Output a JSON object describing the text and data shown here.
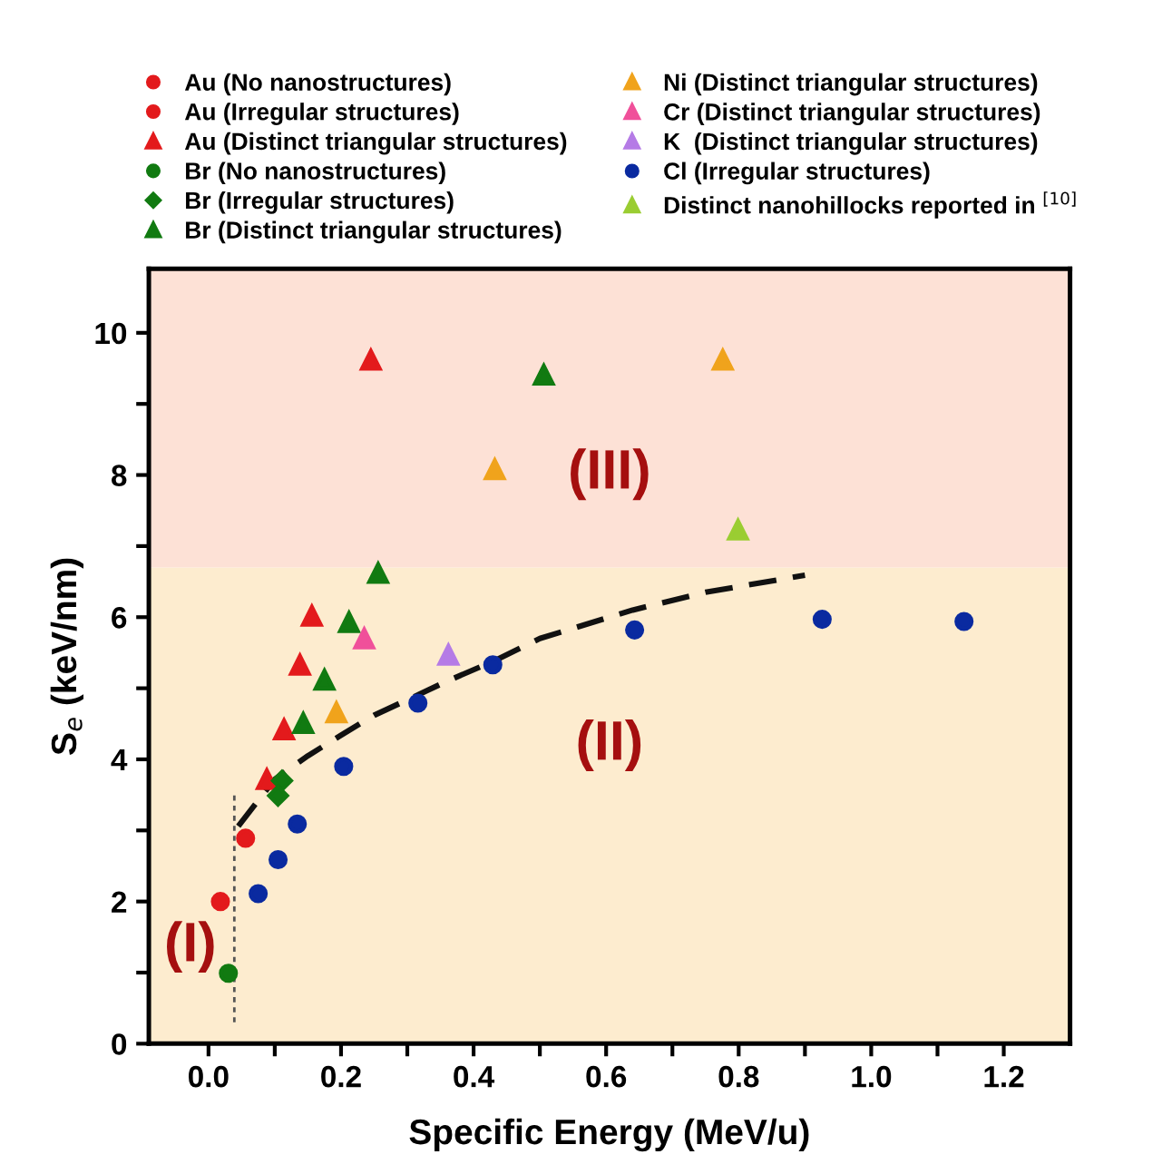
{
  "chart_data": {
    "type": "scatter",
    "xlabel": "Specific Energy (MeV/u)",
    "ylabel": "S$_{e}$ (keV/nm)",
    "xlim": [
      -0.09,
      1.3
    ],
    "ylim": [
      0,
      10.9
    ],
    "xticks": [
      {
        "value": 0,
        "label": "0.0"
      },
      {
        "value": 0.1,
        "label": null
      },
      {
        "value": 0.2,
        "label": "0.2"
      },
      {
        "value": 0.3,
        "label": null
      },
      {
        "value": 0.4,
        "label": "0.4"
      },
      {
        "value": 0.5,
        "label": null
      },
      {
        "value": 0.6,
        "label": "0.6"
      },
      {
        "value": 0.7,
        "label": null
      },
      {
        "value": 0.8,
        "label": "0.8"
      },
      {
        "value": 0.9,
        "label": null
      },
      {
        "value": 1.0,
        "label": "1.0"
      },
      {
        "value": 1.1,
        "label": null
      },
      {
        "value": 1.2,
        "label": "1.2"
      }
    ],
    "yticks": [
      0,
      {
        "value": 1,
        "label": null
      },
      2,
      {
        "value": 3,
        "label": null
      },
      4,
      {
        "value": 5,
        "label": null
      },
      6,
      {
        "value": 7,
        "label": null
      },
      8,
      {
        "value": 9,
        "label": null
      },
      10
    ],
    "grid": false,
    "legend": "top",
    "bands": [
      {
        "axis": "y",
        "from": 0,
        "to": 6.7,
        "color": "#fdeccf"
      },
      {
        "axis": "y",
        "from": 6.7,
        "to": 10.9,
        "color": "#fde1d6"
      }
    ],
    "annotations": [
      "(I)",
      "(II)",
      "(III)"
    ],
    "series": [
      {
        "name": "Au (No nanostructures)",
        "color": "#e31a1c",
        "marker": "circle",
        "x": [
          0.018
        ],
        "values": [
          2.0
        ]
      },
      {
        "name": "Au (Irregular structures)",
        "color": "#e31a1c",
        "marker": "circle",
        "x": [
          0.056
        ],
        "values": [
          2.89
        ]
      },
      {
        "name": "Au (Distinct triangular structures)",
        "color": "#e31a1c",
        "marker": "triangle",
        "x": [
          0.245,
          0.156,
          0.138,
          0.114,
          0.088
        ],
        "values": [
          9.62,
          6.02,
          5.33,
          4.42,
          3.72
        ]
      },
      {
        "name": "Br (No nanostructures)",
        "color": "#117a11",
        "marker": "circle",
        "x": [
          0.03
        ],
        "values": [
          0.99
        ]
      },
      {
        "name": "Br (Irregular structures)",
        "color": "#117a11",
        "marker": "diamond",
        "x": [
          0.111,
          0.105
        ],
        "values": [
          3.7,
          3.49
        ]
      },
      {
        "name": "Br (Distinct triangular structures)",
        "color": "#117a11",
        "marker": "triangle",
        "x": [
          0.506,
          0.256,
          0.212,
          0.175,
          0.143
        ],
        "values": [
          9.41,
          6.62,
          5.93,
          5.12,
          4.51
        ]
      },
      {
        "name": "Ni (Distinct triangular structures)",
        "color": "#f0a31c",
        "marker": "triangle",
        "x": [
          0.432,
          0.776,
          0.193
        ],
        "values": [
          8.08,
          9.62,
          4.66
        ]
      },
      {
        "name": "Cr (Distinct triangular structures)",
        "color": "#f0509a",
        "marker": "triangle",
        "x": [
          0.235
        ],
        "values": [
          5.7
        ]
      },
      {
        "name": "K  (Distinct triangular structures)",
        "color": "#b57be6",
        "marker": "triangle",
        "x": [
          0.362
        ],
        "values": [
          5.47
        ]
      },
      {
        "name": "Cl (Irregular structures)",
        "color": "#0a2aa0",
        "marker": "circle",
        "x": [
          0.075,
          0.105,
          0.134,
          0.204,
          0.316,
          0.429,
          0.643,
          0.926,
          1.14
        ],
        "values": [
          2.11,
          2.59,
          3.09,
          3.9,
          4.79,
          5.33,
          5.82,
          5.97,
          5.94
        ]
      },
      {
        "name": "Distinct nanohillocks reported in $^{[10]}$",
        "color": "#9acd32",
        "marker": "triangle",
        "x": [
          0.799
        ],
        "values": [
          7.23
        ]
      },
      {
        "type": "line",
        "color": "#111111",
        "line_style": "dashed",
        "marker": "none",
        "x": [
          0.045,
          0.1,
          0.15,
          0.2,
          0.25,
          0.31,
          0.36,
          0.43,
          0.5,
          0.64,
          0.75,
          0.9
        ],
        "values": [
          3.06,
          3.72,
          4.05,
          4.34,
          4.62,
          4.88,
          5.1,
          5.38,
          5.7,
          6.1,
          6.35,
          6.59
        ]
      },
      {
        "type": "line",
        "color": "#555555",
        "line_style": "dotted",
        "marker": "none",
        "x": [
          0.039,
          0.039
        ],
        "values": [
          0.3,
          3.55
        ]
      }
    ]
  }
}
